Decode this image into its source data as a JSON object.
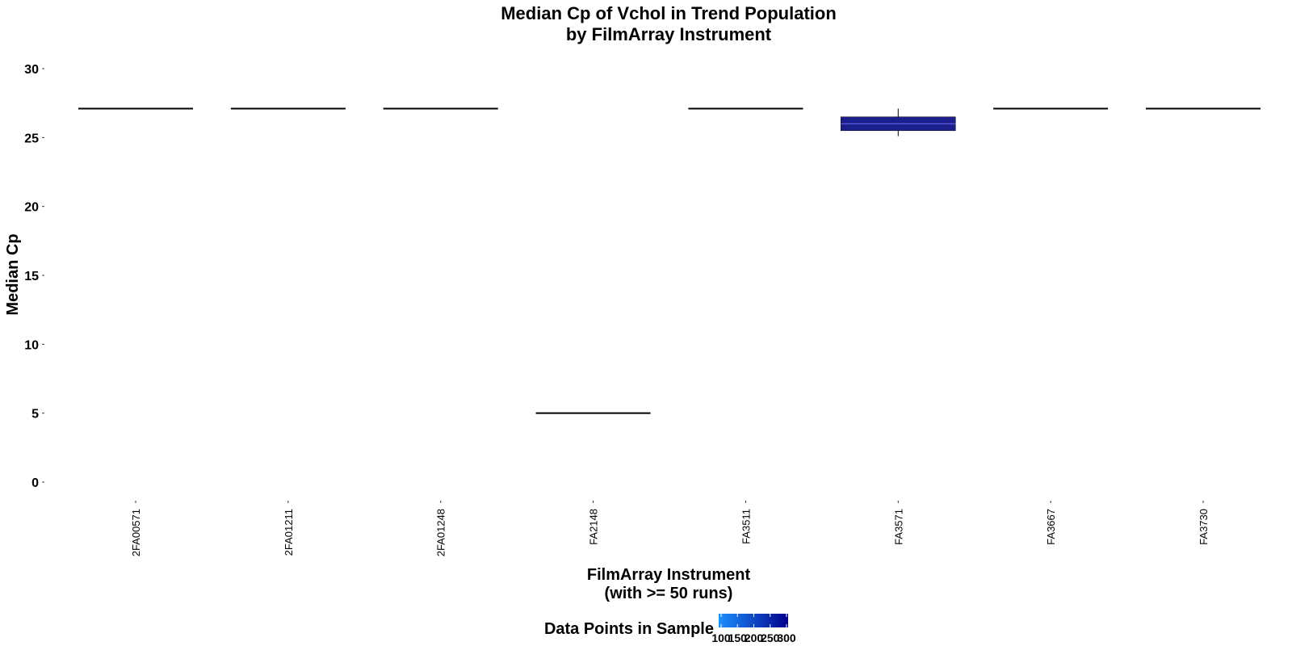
{
  "chart_data": {
    "type": "boxplot",
    "title_line1": "Median Cp of Vchol in Trend Population",
    "title_line2": "by FilmArray Instrument",
    "xlabel_line1": "FilmArray Instrument",
    "xlabel_line2": "(with >= 50 runs)",
    "ylabel": "Median Cp",
    "ylim": [
      -1,
      31
    ],
    "yticks": [
      0,
      5,
      10,
      15,
      20,
      25,
      30
    ],
    "grid": false,
    "categories": [
      "2FA00571",
      "2FA01211",
      "2FA01248",
      "FA2148",
      "FA3511",
      "FA3571",
      "FA3667",
      "FA3730"
    ],
    "boxes": [
      {
        "category": "2FA00571",
        "min": 27.1,
        "q1": 27.1,
        "median": 27.1,
        "q3": 27.1,
        "max": 27.1,
        "n": 50
      },
      {
        "category": "2FA01211",
        "min": 27.1,
        "q1": 27.1,
        "median": 27.1,
        "q3": 27.1,
        "max": 27.1,
        "n": 50
      },
      {
        "category": "2FA01248",
        "min": 27.1,
        "q1": 27.1,
        "median": 27.1,
        "q3": 27.1,
        "max": 27.1,
        "n": 50
      },
      {
        "category": "FA2148",
        "min": 5.0,
        "q1": 5.0,
        "median": 5.0,
        "q3": 5.0,
        "max": 5.0,
        "n": 50
      },
      {
        "category": "FA3511",
        "min": 27.1,
        "q1": 27.1,
        "median": 27.1,
        "q3": 27.1,
        "max": 27.1,
        "n": 50
      },
      {
        "category": "FA3571",
        "min": 25.1,
        "q1": 25.5,
        "median": 26.0,
        "q3": 26.5,
        "max": 27.1,
        "n": 300
      },
      {
        "category": "FA3667",
        "min": 27.1,
        "q1": 27.1,
        "median": 27.1,
        "q3": 27.1,
        "max": 27.1,
        "n": 50
      },
      {
        "category": "FA3730",
        "min": 27.1,
        "q1": 27.1,
        "median": 27.1,
        "q3": 27.1,
        "max": 27.1,
        "n": 50
      }
    ],
    "legend": {
      "title": "Data Points in Sample",
      "position": "bottom",
      "tick_labels": [
        "100",
        "150",
        "200",
        "250",
        "300"
      ],
      "range": [
        100,
        300
      ],
      "color_low": "#1e90ff",
      "color_high": "#00008b"
    }
  },
  "colors": {
    "box_fill_main": "#1a1f8c",
    "median_line": "#6b6bff",
    "line": "#000000"
  }
}
